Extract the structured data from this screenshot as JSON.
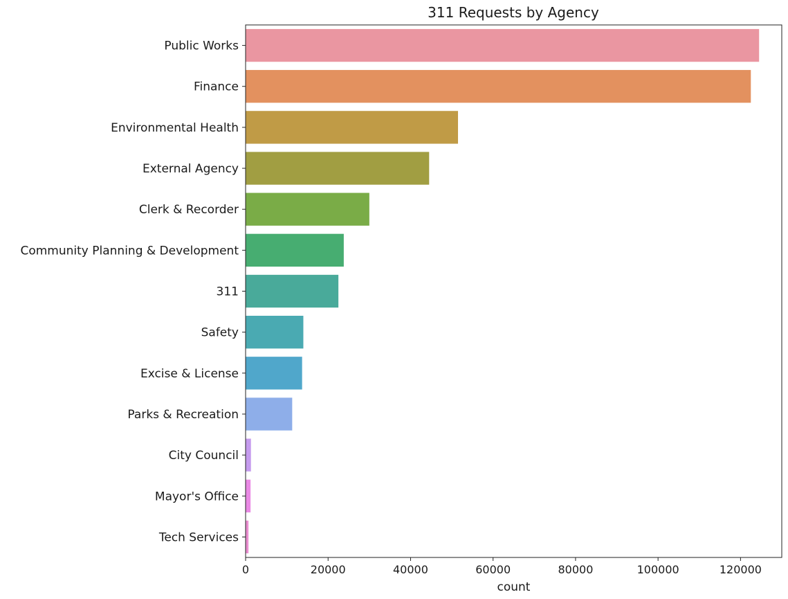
{
  "chart_data": {
    "type": "bar",
    "orientation": "horizontal",
    "title": "311 Requests by Agency",
    "xlabel": "count",
    "ylabel": "",
    "xlim": [
      0,
      130000
    ],
    "xticks": [
      0,
      20000,
      40000,
      60000,
      80000,
      100000,
      120000
    ],
    "grid": false,
    "categories": [
      "Public Works",
      "Finance",
      "Environmental Health",
      "External Agency",
      "Clerk & Recorder",
      "Community Planning & Development",
      "311",
      "Safety",
      "Excise & License",
      "Parks & Recreation",
      "City Council",
      "Mayor's Office",
      "Tech Services"
    ],
    "values": [
      124500,
      122500,
      51500,
      44500,
      30000,
      23800,
      22500,
      14000,
      13700,
      11300,
      1300,
      1200,
      700
    ],
    "colors": [
      "#ea96a1",
      "#e3915f",
      "#c09b46",
      "#a19e42",
      "#7aac47",
      "#47ad71",
      "#49aa9a",
      "#4aaab2",
      "#50a7cb",
      "#8eaee9",
      "#c59bee",
      "#e989e4",
      "#ea8ed0"
    ]
  }
}
